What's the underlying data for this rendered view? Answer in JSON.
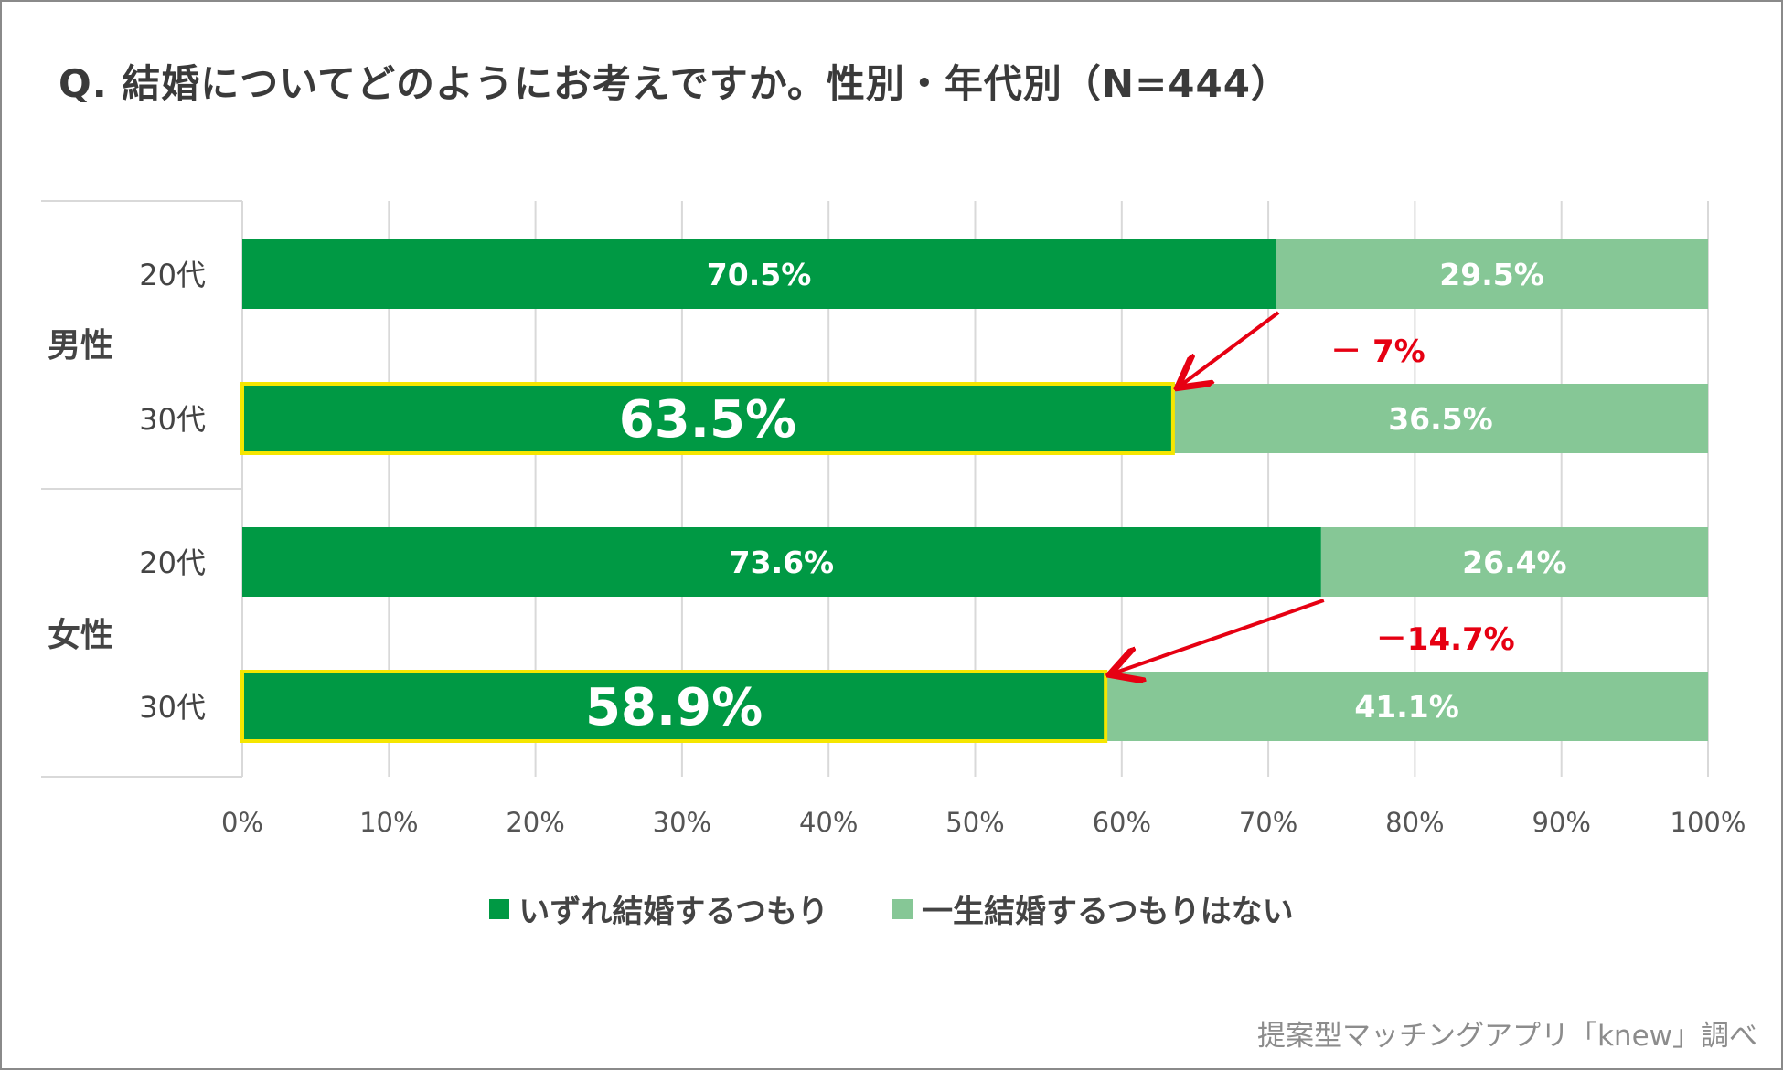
{
  "title": "Q. 結婚についてどのようにお考えですか。性別・年代別（N=444）",
  "credit": "提案型マッチングアプリ「knew」調べ",
  "colors": {
    "series1": "#009944",
    "series2": "#86c796",
    "highlight": "#f5e600",
    "annotation": "#e60012",
    "grid": "#d9d9d9",
    "axis_text": "#555555"
  },
  "legend": [
    {
      "label": "いずれ結婚するつもり",
      "color": "#009944"
    },
    {
      "label": "一生結婚するつもりはない",
      "color": "#86c796"
    }
  ],
  "chart_data": {
    "type": "bar",
    "orientation": "horizontal",
    "stacked": true,
    "groups": [
      {
        "label": "男性",
        "categories": [
          "20代",
          "30代"
        ]
      },
      {
        "label": "女性",
        "categories": [
          "20代",
          "30代"
        ]
      }
    ],
    "series": [
      {
        "name": "いずれ結婚するつもり",
        "values": [
          70.5,
          63.5,
          73.6,
          58.9
        ],
        "labels": [
          "70.5%",
          "63.5%",
          "73.6%",
          "58.9%"
        ]
      },
      {
        "name": "一生結婚するつもりはない",
        "values": [
          29.5,
          36.5,
          26.4,
          41.1
        ],
        "labels": [
          "29.5%",
          "36.5%",
          "26.4%",
          "41.1%"
        ]
      }
    ],
    "highlighted_rows": [
      1,
      3
    ],
    "annotations": [
      {
        "text": "－ 7%",
        "from_row": 0,
        "to_row": 1
      },
      {
        "text": "－14.7%",
        "from_row": 2,
        "to_row": 3
      }
    ],
    "xlim": [
      0,
      100
    ],
    "xticks": [
      "0%",
      "10%",
      "20%",
      "30%",
      "40%",
      "50%",
      "60%",
      "70%",
      "80%",
      "90%",
      "100%"
    ],
    "grid": true,
    "legend_position": "bottom"
  }
}
